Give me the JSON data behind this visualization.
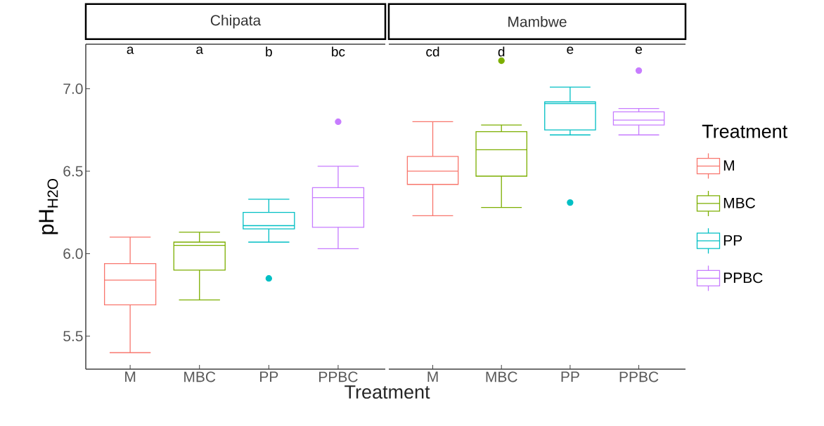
{
  "chart_data": [
    {
      "type": "box",
      "title": "Chipata",
      "ylabel": "pH$_{H2O}$",
      "xlabel": "Treatment",
      "categories": [
        "M",
        "MBC",
        "PP",
        "PPBC"
      ],
      "ylim": [
        5.3,
        7.27
      ],
      "yticks": [
        {
          "value": 5.5,
          "label": "5.5"
        },
        {
          "value": 6.0,
          "label": "6.0"
        },
        {
          "value": 6.5,
          "label": "6.5"
        },
        {
          "value": 7.0,
          "label": "7.0"
        }
      ],
      "annotations": [
        "a",
        "a",
        "b",
        "bc"
      ],
      "series": [
        {
          "color": "#f8766d",
          "boxes": [
            {
              "low": 5.4,
              "q1": 5.69,
              "median": 5.84,
              "q3": 5.94,
              "high": 6.1
            },
            null,
            null,
            null
          ]
        },
        {
          "color": "#7cae00",
          "boxes": [
            null,
            {
              "low": 5.72,
              "q1": 5.9,
              "median": 6.05,
              "q3": 6.07,
              "high": 6.13
            },
            null,
            null
          ]
        },
        {
          "color": "#00bfc4",
          "boxes": [
            null,
            null,
            {
              "low": 6.07,
              "q1": 6.15,
              "median": 6.17,
              "q3": 6.25,
              "high": 6.33,
              "outliers": [
                5.85
              ]
            },
            null
          ]
        },
        {
          "color": "#c77cff",
          "boxes": [
            null,
            null,
            null,
            {
              "low": 6.03,
              "q1": 6.16,
              "median": 6.34,
              "q3": 6.4,
              "high": 6.53,
              "outliers": [
                6.8
              ]
            }
          ]
        }
      ]
    },
    {
      "type": "box",
      "title": "Mambwe",
      "legend": "right",
      "legend_title": "Treatment",
      "tick_labels": "x",
      "categories": [
        "M",
        "MBC",
        "PP",
        "PPBC"
      ],
      "ylim": [
        5.3,
        7.27
      ],
      "annotations": [
        "cd",
        "d",
        "e",
        "e"
      ],
      "series": [
        {
          "name": "M",
          "color": "#f8766d",
          "boxes": [
            {
              "low": 6.23,
              "q1": 6.42,
              "median": 6.5,
              "q3": 6.59,
              "high": 6.8
            },
            null,
            null,
            null
          ]
        },
        {
          "name": "MBC",
          "color": "#7cae00",
          "boxes": [
            null,
            {
              "low": 6.28,
              "q1": 6.47,
              "median": 6.63,
              "q3": 6.74,
              "high": 6.78,
              "outliers": [
                7.17
              ]
            },
            null,
            null
          ]
        },
        {
          "name": "PP",
          "color": "#00bfc4",
          "boxes": [
            null,
            null,
            {
              "low": 6.72,
              "q1": 6.75,
              "median": 6.91,
              "q3": 6.92,
              "high": 7.01,
              "outliers": [
                6.31
              ]
            },
            null
          ]
        },
        {
          "name": "PPBC",
          "color": "#c77cff",
          "boxes": [
            null,
            null,
            null,
            {
              "low": 6.72,
              "q1": 6.78,
              "median": 6.81,
              "q3": 6.86,
              "high": 6.88,
              "outliers": [
                7.11
              ]
            }
          ]
        }
      ]
    }
  ]
}
